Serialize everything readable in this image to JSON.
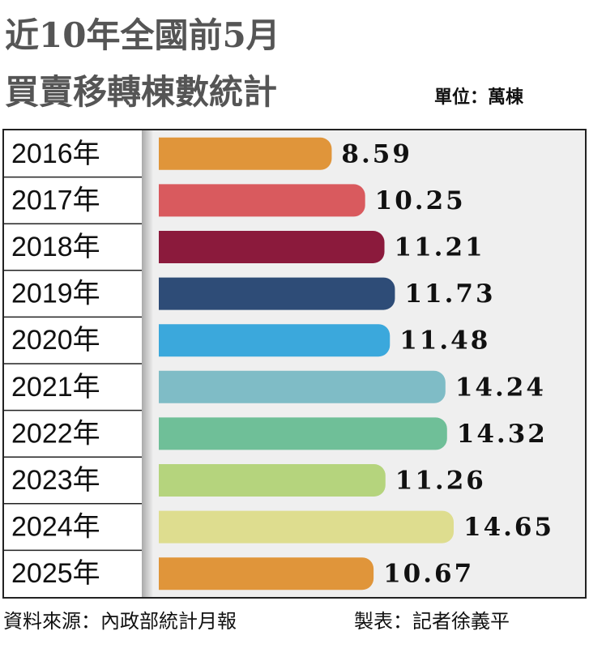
{
  "chart_data": {
    "type": "bar",
    "orientation": "horizontal",
    "title": [
      "近10年全國前5月",
      "買賣移轉棟數統計"
    ],
    "unit": "單位：萬棟",
    "categories": [
      "2016年",
      "2017年",
      "2018年",
      "2019年",
      "2020年",
      "2021年",
      "2022年",
      "2023年",
      "2024年",
      "2025年"
    ],
    "values": [
      8.59,
      10.25,
      11.21,
      11.73,
      11.48,
      14.24,
      14.32,
      11.26,
      14.65,
      10.67
    ],
    "colors": [
      "#e0953a",
      "#d95a5e",
      "#8b1a3c",
      "#2e4c77",
      "#3ba8dc",
      "#7fbcc6",
      "#6fbf98",
      "#b5d47d",
      "#dedd8f",
      "#e0953a"
    ],
    "source": "資料來源：內政部統計月報",
    "credit": "製表：記者徐義平"
  }
}
